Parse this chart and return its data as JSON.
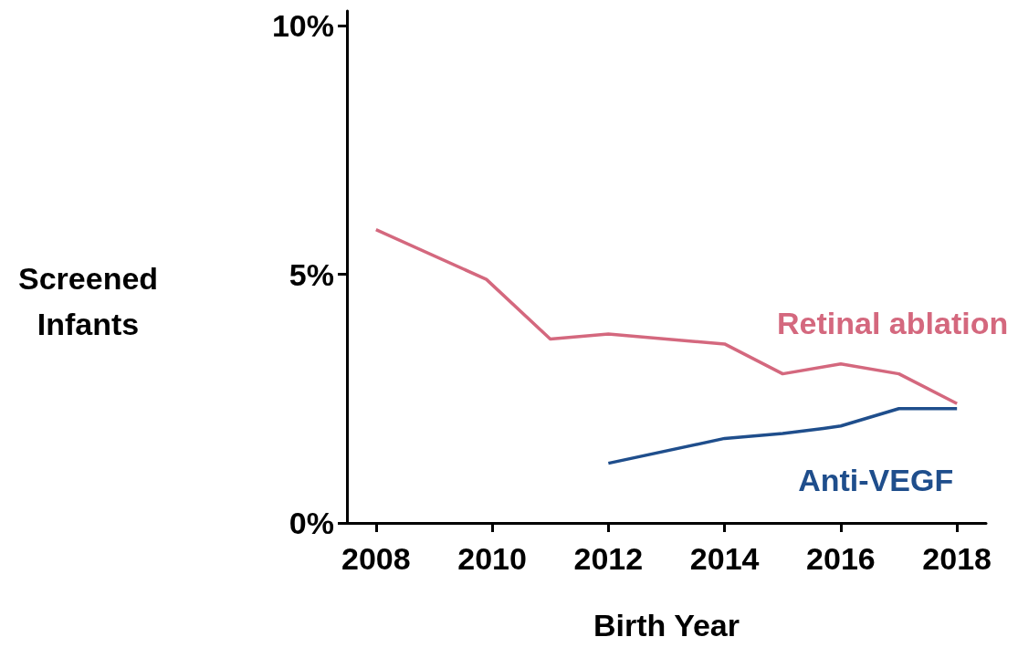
{
  "chart_data": {
    "type": "line",
    "xlabel": "Birth Year",
    "ylabel": "Screened\nInfants",
    "xlim": [
      2007.5,
      2018.5
    ],
    "xticks": [
      2008,
      2010,
      2012,
      2014,
      2016,
      2018
    ],
    "ylim": [
      0,
      10.3
    ],
    "yticks": [
      {
        "value": 0,
        "label": "0%"
      },
      {
        "value": 5,
        "label": "5%"
      },
      {
        "value": 10,
        "label": "10%"
      }
    ],
    "grid": false,
    "legend": false,
    "marker": "none",
    "line_style": "solid",
    "series": [
      {
        "name": "Retinal ablation",
        "color": "#d4687e",
        "x": [
          2008,
          2009.9,
          2011,
          2012,
          2014,
          2015,
          2016,
          2017,
          2018
        ],
        "values": [
          5.9,
          4.9,
          3.7,
          3.8,
          3.6,
          3.0,
          3.2,
          3.0,
          2.4
        ]
      },
      {
        "name": "Anti-VEGF",
        "color": "#1f4e8c",
        "x": [
          2012,
          2014,
          2015,
          2015.7,
          2016,
          2017,
          2018
        ],
        "values": [
          1.2,
          1.7,
          1.8,
          1.9,
          1.95,
          2.3,
          2.3
        ]
      }
    ]
  }
}
